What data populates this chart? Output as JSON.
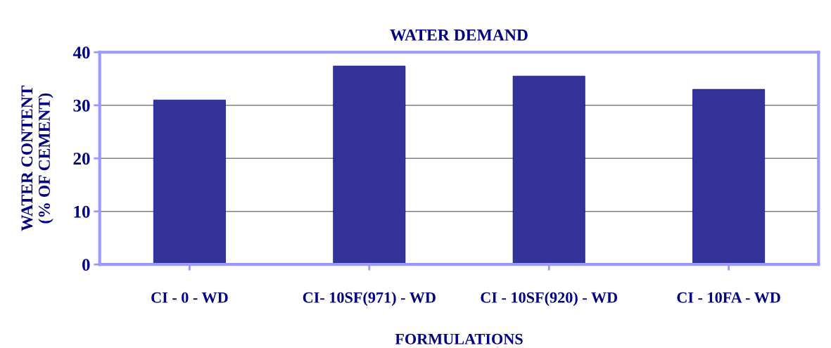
{
  "chart_data": {
    "type": "bar",
    "title": "WATER DEMAND",
    "xlabel": "FORMULATIONS",
    "ylabel": "WATER CONTENT\n(% OF CEMENT)",
    "categories": [
      "CI - 0 - WD",
      "CI- 10SF(971) - WD",
      "CI - 10SF(920) - WD",
      "CI - 10FA - WD"
    ],
    "values": [
      31.0,
      37.4,
      35.5,
      33.0
    ],
    "color": "#333399",
    "ylim": [
      0,
      40
    ],
    "yticks": [
      0,
      10,
      20,
      30,
      40
    ],
    "grid": "y"
  }
}
